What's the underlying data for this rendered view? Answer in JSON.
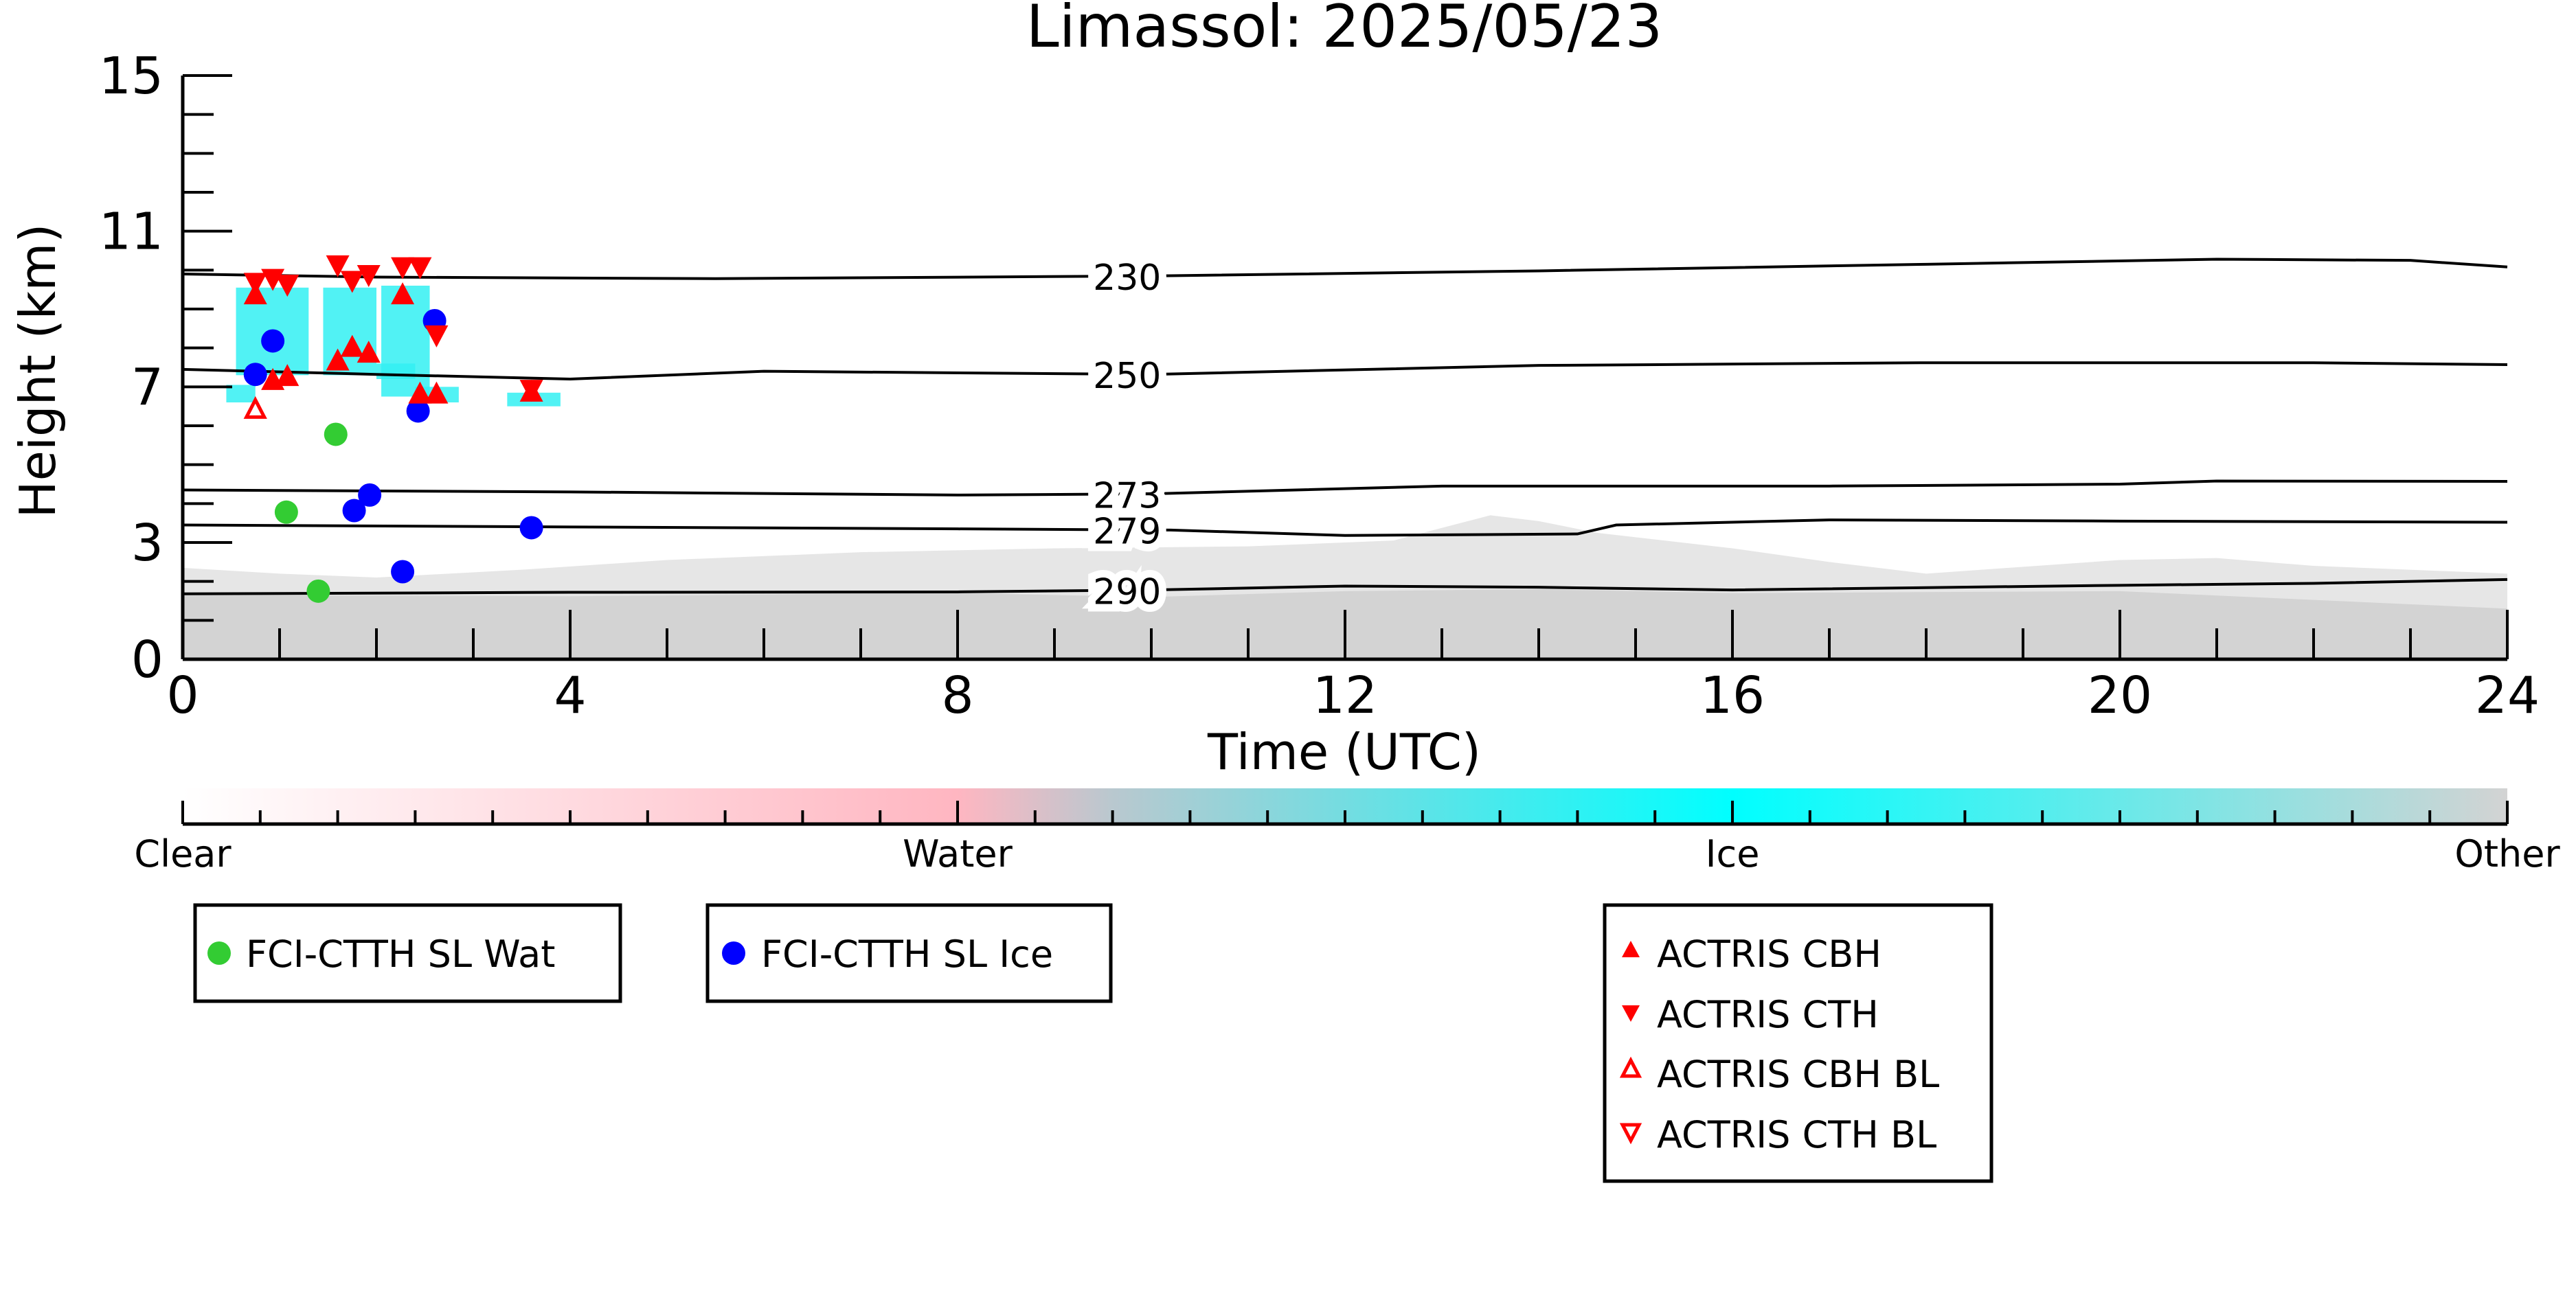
{
  "chart_data": {
    "type": "scatter",
    "title": "Limassol: 2025/05/23",
    "xlabel": "Time (UTC)",
    "ylabel": "Height (km)",
    "xlim": [
      0,
      24
    ],
    "ylim": [
      0,
      15
    ],
    "x_ticks": [
      0,
      4,
      8,
      12,
      16,
      20,
      24
    ],
    "y_ticks": [
      0,
      3,
      7,
      11,
      15
    ],
    "grid": false,
    "isotherms": [
      {
        "label": "230",
        "label_x": 9.75,
        "points": [
          [
            0,
            9.9
          ],
          [
            2,
            9.82
          ],
          [
            5.5,
            9.78
          ],
          [
            10,
            9.85
          ],
          [
            14,
            9.98
          ],
          [
            18,
            10.15
          ],
          [
            21,
            10.28
          ],
          [
            23,
            10.25
          ],
          [
            24,
            10.08
          ]
        ]
      },
      {
        "label": "250",
        "label_x": 9.75,
        "points": [
          [
            0,
            7.45
          ],
          [
            2,
            7.32
          ],
          [
            4,
            7.2
          ],
          [
            6,
            7.4
          ],
          [
            10,
            7.32
          ],
          [
            14,
            7.55
          ],
          [
            18,
            7.62
          ],
          [
            22,
            7.62
          ],
          [
            24,
            7.57
          ]
        ]
      },
      {
        "label": "273",
        "label_x": 9.75,
        "points": [
          [
            0,
            4.35
          ],
          [
            4,
            4.3
          ],
          [
            8,
            4.22
          ],
          [
            10,
            4.25
          ],
          [
            13,
            4.45
          ],
          [
            17,
            4.45
          ],
          [
            20,
            4.5
          ],
          [
            21,
            4.58
          ],
          [
            24,
            4.57
          ]
        ]
      },
      {
        "label": "279",
        "label_x": 9.75,
        "points": [
          [
            0,
            3.45
          ],
          [
            4,
            3.4
          ],
          [
            8,
            3.35
          ],
          [
            10.2,
            3.32
          ],
          [
            12,
            3.18
          ],
          [
            14.4,
            3.22
          ],
          [
            14.8,
            3.45
          ],
          [
            17,
            3.58
          ],
          [
            20,
            3.55
          ],
          [
            24,
            3.52
          ]
        ]
      },
      {
        "label": "290",
        "label_x": 9.75,
        "points": [
          [
            0,
            1.68
          ],
          [
            4,
            1.72
          ],
          [
            8,
            1.73
          ],
          [
            10,
            1.78
          ],
          [
            12,
            1.88
          ],
          [
            14,
            1.85
          ],
          [
            16,
            1.78
          ],
          [
            20,
            1.9
          ],
          [
            22,
            1.95
          ],
          [
            24,
            2.05
          ]
        ]
      }
    ],
    "classification_colorbar": {
      "labels": [
        "Clear",
        "Water",
        "Ice",
        "Other"
      ],
      "label_positions": [
        0,
        0.333,
        0.667,
        1.0
      ],
      "colors": [
        "#ffffff",
        "#ffb6c1",
        "#00ffff",
        "#d3d3d3"
      ]
    },
    "series": [
      {
        "name": "FCI-CTTH SL Wat",
        "marker": "circle",
        "color": "#33cc33",
        "points": [
          [
            1.07,
            3.78
          ],
          [
            1.4,
            1.75
          ],
          [
            1.58,
            5.78
          ]
        ]
      },
      {
        "name": "FCI-CTTH SL Ice",
        "marker": "circle",
        "color": "#0000ff",
        "points": [
          [
            0.75,
            7.32
          ],
          [
            0.93,
            8.18
          ],
          [
            1.77,
            3.82
          ],
          [
            1.93,
            4.22
          ],
          [
            2.27,
            2.25
          ],
          [
            2.43,
            6.38
          ],
          [
            2.6,
            8.7
          ],
          [
            3.6,
            3.38
          ]
        ]
      },
      {
        "name": "ACTRIS CBH",
        "marker": "triangle-up",
        "color": "#ff0000",
        "filled": true,
        "points": [
          [
            0.75,
            9.35
          ],
          [
            0.93,
            7.15
          ],
          [
            1.08,
            7.25
          ],
          [
            1.6,
            7.65
          ],
          [
            1.75,
            8.0
          ],
          [
            1.92,
            7.85
          ],
          [
            2.27,
            9.35
          ],
          [
            2.45,
            6.8
          ],
          [
            2.62,
            6.8
          ],
          [
            3.6,
            6.85
          ]
        ]
      },
      {
        "name": "ACTRIS CTH",
        "marker": "triangle-down",
        "color": "#ff0000",
        "filled": true,
        "points": [
          [
            0.75,
            9.7
          ],
          [
            0.93,
            9.8
          ],
          [
            1.08,
            9.65
          ],
          [
            1.6,
            10.15
          ],
          [
            1.75,
            9.75
          ],
          [
            1.92,
            9.9
          ],
          [
            2.27,
            10.1
          ],
          [
            2.45,
            10.1
          ],
          [
            2.62,
            8.35
          ],
          [
            3.6,
            6.95
          ]
        ]
      },
      {
        "name": "ACTRIS CBH BL",
        "marker": "triangle-up-open",
        "color": "#ff0000",
        "filled": false,
        "points": [
          [
            0.75,
            6.4
          ]
        ]
      },
      {
        "name": "ACTRIS CTH BL",
        "marker": "triangle-down-open",
        "color": "#ff0000",
        "filled": false,
        "points": []
      }
    ],
    "legend": {
      "boxes": [
        {
          "placement": "bottom-left",
          "entries": [
            "FCI-CTTH SL Wat"
          ]
        },
        {
          "placement": "bottom-left-center",
          "entries": [
            "FCI-CTTH SL Ice"
          ]
        },
        {
          "placement": "bottom-center-right",
          "entries": [
            "ACTRIS CBH",
            "ACTRIS CTH",
            "ACTRIS CBH BL",
            "ACTRIS CTH BL"
          ]
        }
      ]
    },
    "colors": {
      "water_legend": "#33cc33",
      "ice_legend": "#0000ff",
      "actris": "#ff0000",
      "ice_shading": "#00ffff",
      "other_shading": "#d3d3d3"
    }
  }
}
